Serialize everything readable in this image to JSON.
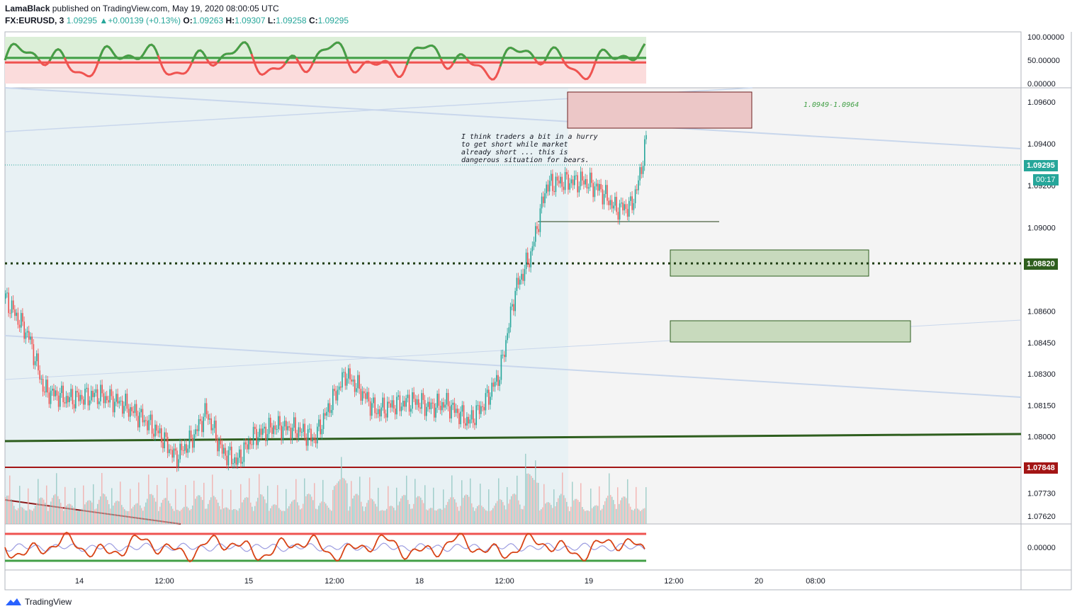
{
  "header": {
    "author": "LamaBlack",
    "published_text": "published on TradingView.com, May 19, 2020 08:00:05 UTC",
    "symbol": "FX:EURUSD, 3",
    "last": "1.09295",
    "change": "+0.00139 (+0.13%)",
    "open_label": "O:",
    "open": "1.09263",
    "high_label": "H:",
    "high": "1.09307",
    "low_label": "L:",
    "low": "1.09258",
    "close_label": "C:",
    "close": "1.09295"
  },
  "brand": {
    "name": "TradingView"
  },
  "annotation": {
    "lines": [
      "I think traders a bit in a hurry",
      "to get short while market",
      "already short ... this is",
      "dangerous situation for bears."
    ],
    "zone_label": "1.0949-1.0964"
  },
  "price_labels": {
    "current": "1.09295",
    "countdown": "00:17",
    "level_green": "1.08820",
    "level_red": "1.07848"
  },
  "colors": {
    "up": "#26a69a",
    "down": "#ef5350",
    "dark_green": "#2e5e1e",
    "dark_red": "#a31515",
    "zone_red": "#e8b4b4",
    "zone_green": "#c5d9bc",
    "osc_green": "#43a047",
    "osc_red": "#ef5350"
  },
  "chart_data": {
    "type": "candlestick",
    "symbol": "EURUSD",
    "interval": "3",
    "y_axis_ticks": [
      "1.09600",
      "1.09400",
      "1.09200",
      "1.09000",
      "1.08600",
      "1.08450",
      "1.08300",
      "1.08150",
      "1.08000",
      "1.07730",
      "1.07620"
    ],
    "osc_top_ticks": [
      "100.00000",
      "50.00000",
      "0.00000"
    ],
    "osc_bottom_ticks": [
      "0.00000"
    ],
    "x_axis_ticks": [
      "14",
      "12:00",
      "15",
      "12:00",
      "18",
      "12:00",
      "19",
      "12:00",
      "20",
      "08:00"
    ],
    "price_path": [
      [
        0,
        1.0866
      ],
      [
        3,
        1.0848
      ],
      [
        5,
        1.0822
      ],
      [
        8,
        1.0818
      ],
      [
        12,
        1.082
      ],
      [
        15,
        1.0816
      ],
      [
        18,
        1.0808
      ],
      [
        20,
        1.0801
      ],
      [
        22,
        1.079
      ],
      [
        24,
        1.0798
      ],
      [
        26,
        1.0812
      ],
      [
        28,
        1.0793
      ],
      [
        30,
        1.0788
      ],
      [
        32,
        1.08
      ],
      [
        35,
        1.0805
      ],
      [
        38,
        1.0803
      ],
      [
        40,
        1.0799
      ],
      [
        42,
        1.0815
      ],
      [
        44,
        1.083
      ],
      [
        46,
        1.0822
      ],
      [
        48,
        1.0812
      ],
      [
        50,
        1.0815
      ],
      [
        53,
        1.0817
      ],
      [
        55,
        1.0814
      ],
      [
        57,
        1.0816
      ],
      [
        60,
        1.0807
      ],
      [
        62,
        1.0816
      ],
      [
        64,
        1.083
      ],
      [
        66,
        1.087
      ],
      [
        68,
        1.0887
      ],
      [
        69,
        1.0903
      ],
      [
        70,
        1.092
      ],
      [
        72,
        1.0922
      ],
      [
        75,
        1.0922
      ],
      [
        77,
        1.0918
      ],
      [
        79,
        1.0909
      ],
      [
        81,
        1.091
      ],
      [
        82,
        1.0922
      ],
      [
        83,
        1.0943
      ],
      [
        84,
        1.0933
      ]
    ],
    "annotations": [
      {
        "type": "zone",
        "price_low": 1.0949,
        "price_high": 1.0964,
        "color": "red"
      },
      {
        "type": "zone",
        "price_low": 1.0876,
        "price_high": 1.0889,
        "color": "green"
      },
      {
        "type": "zone",
        "price_low": 1.0845,
        "price_high": 1.0855,
        "color": "green"
      },
      {
        "type": "hline",
        "price": 1.0882,
        "style": "dotted"
      },
      {
        "type": "hline",
        "price": 1.07848,
        "style": "solid"
      },
      {
        "type": "trendline",
        "price_start": 1.0799,
        "price_end": 1.0801
      },
      {
        "type": "hline",
        "price": 1.0902,
        "style": "solid-short"
      }
    ]
  }
}
